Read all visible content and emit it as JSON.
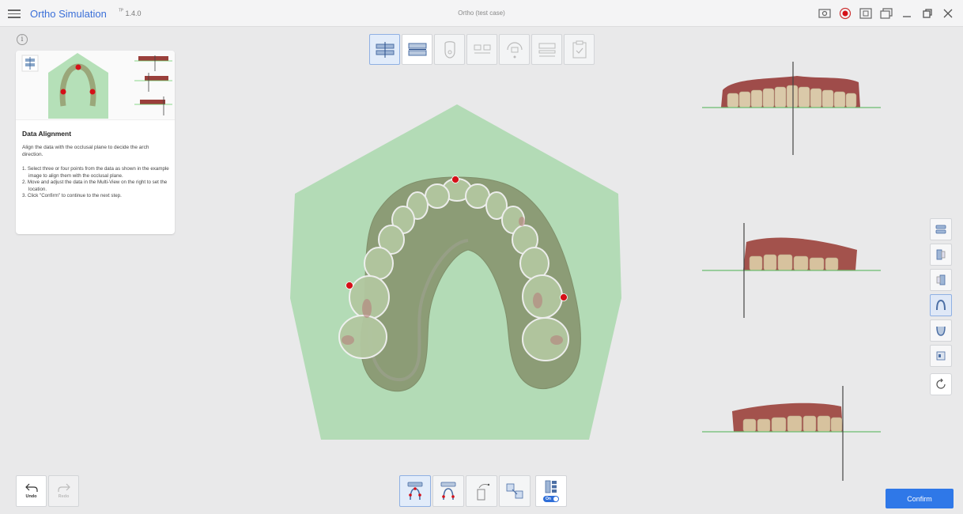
{
  "app": {
    "title": "Ortho Simulation",
    "version": "1.4.0",
    "version_mark": "ᵀᴾ",
    "case_name": "Ortho (test case)"
  },
  "window_controls": [
    "screen-record-icon",
    "record-icon",
    "capture-icon",
    "multiwindow-icon",
    "minimize-icon",
    "maximize-icon",
    "close-icon"
  ],
  "guide": {
    "heading": "Data Alignment",
    "description": "Align the data with the occlusal plane to decide the arch direction.",
    "steps": [
      "1. Select three or four points from the data as shown in the example image to align them with the occlusal plane.",
      "2. Move and adjust the data in the Multi-View on the right to set the location.",
      "3. Click \"Confirm\" to continue to the next step."
    ]
  },
  "top_toolbar": [
    "data-alignment-step",
    "occlusion-step",
    "tooth-segmentation-step",
    "arch-setup-step",
    "movement-step",
    "ipr-step",
    "checklist-step"
  ],
  "right_toolbar": [
    "view-top",
    "view-front",
    "view-side",
    "view-occlusal",
    "view-lower",
    "view-box",
    "view-reset"
  ],
  "undo": {
    "label": "Undo"
  },
  "redo": {
    "label": "Redo"
  },
  "bottom_toolbar": {
    "toggle_label": "On"
  },
  "confirm": {
    "label": "Confirm"
  },
  "colors": {
    "accent": "#2f78e8",
    "plane_green": "#a9dcb0",
    "marker_red": "#d51018"
  }
}
